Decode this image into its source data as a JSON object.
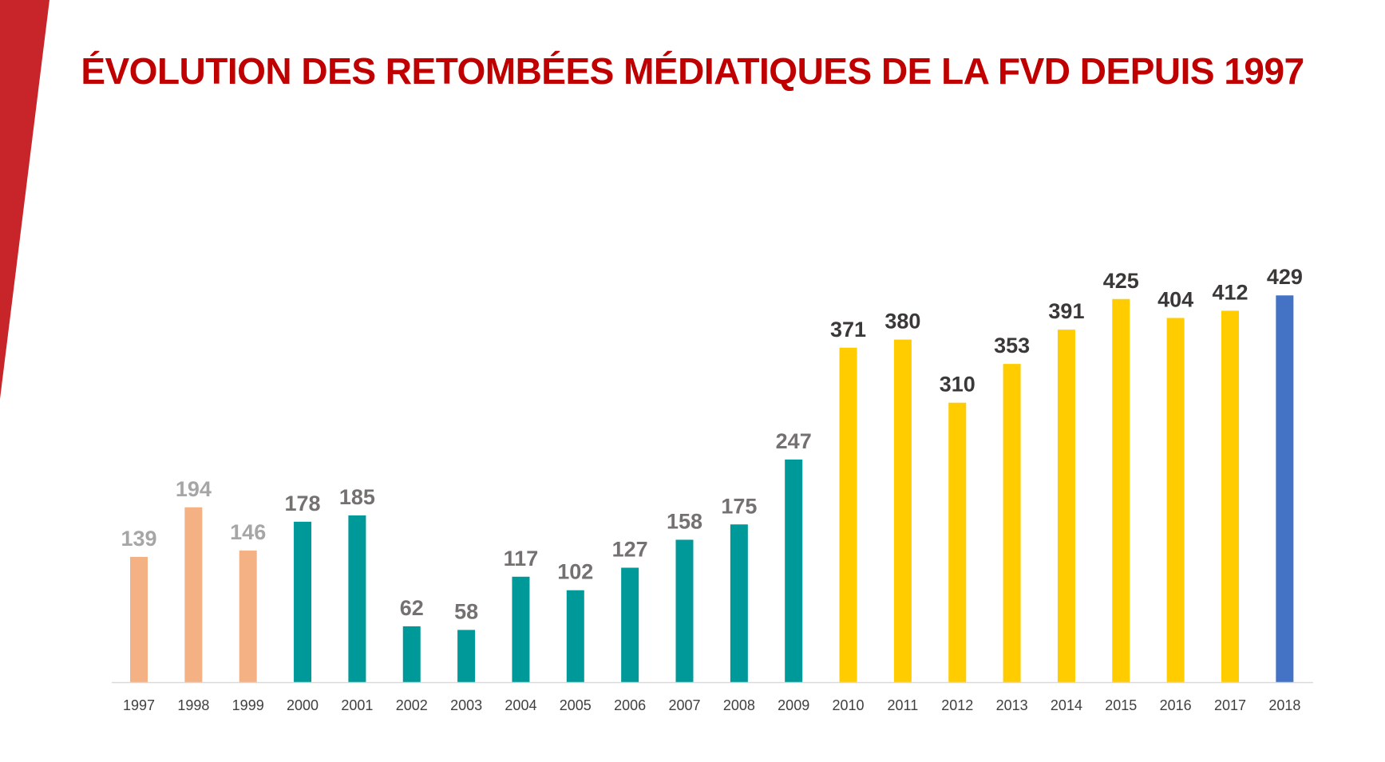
{
  "title": "ÉVOLUTION DES RETOMBÉES MÉDIATIQUES DE LA FVD DEPUIS 1997",
  "colors": {
    "accent_red": "#c8252b",
    "title_red": "#c00000",
    "period_1": "#f4b183",
    "period_2": "#009999",
    "period_3": "#ffcc00",
    "period_4": "#4472c4",
    "label_light": "#a6a6a6",
    "label_mid": "#767171",
    "label_dark": "#3b3838",
    "axis": "#d9d9d9"
  },
  "chart_data": {
    "type": "bar",
    "title": "ÉVOLUTION DES RETOMBÉES MÉDIATIQUES DE LA FVD DEPUIS 1997",
    "xlabel": "",
    "ylabel": "",
    "categories": [
      "1997",
      "1998",
      "1999",
      "2000",
      "2001",
      "2002",
      "2003",
      "2004",
      "2005",
      "2006",
      "2007",
      "2008",
      "2009",
      "2010",
      "2011",
      "2012",
      "2013",
      "2014",
      "2015",
      "2016",
      "2017",
      "2018"
    ],
    "values": [
      139,
      194,
      146,
      178,
      185,
      62,
      58,
      117,
      102,
      127,
      158,
      175,
      247,
      371,
      380,
      310,
      353,
      391,
      425,
      404,
      412,
      429
    ],
    "bar_colors": [
      "#f4b183",
      "#f4b183",
      "#f4b183",
      "#009999",
      "#009999",
      "#009999",
      "#009999",
      "#009999",
      "#009999",
      "#009999",
      "#009999",
      "#009999",
      "#009999",
      "#ffcc00",
      "#ffcc00",
      "#ffcc00",
      "#ffcc00",
      "#ffcc00",
      "#ffcc00",
      "#ffcc00",
      "#ffcc00",
      "#4472c4"
    ],
    "label_colors": [
      "#a6a6a6",
      "#a6a6a6",
      "#a6a6a6",
      "#767171",
      "#767171",
      "#767171",
      "#767171",
      "#767171",
      "#767171",
      "#767171",
      "#767171",
      "#767171",
      "#767171",
      "#3b3838",
      "#3b3838",
      "#3b3838",
      "#3b3838",
      "#3b3838",
      "#3b3838",
      "#3b3838",
      "#3b3838",
      "#3b3838"
    ],
    "ylim": [
      0,
      480
    ],
    "grid": false,
    "legend": "none",
    "data_labels": true
  }
}
